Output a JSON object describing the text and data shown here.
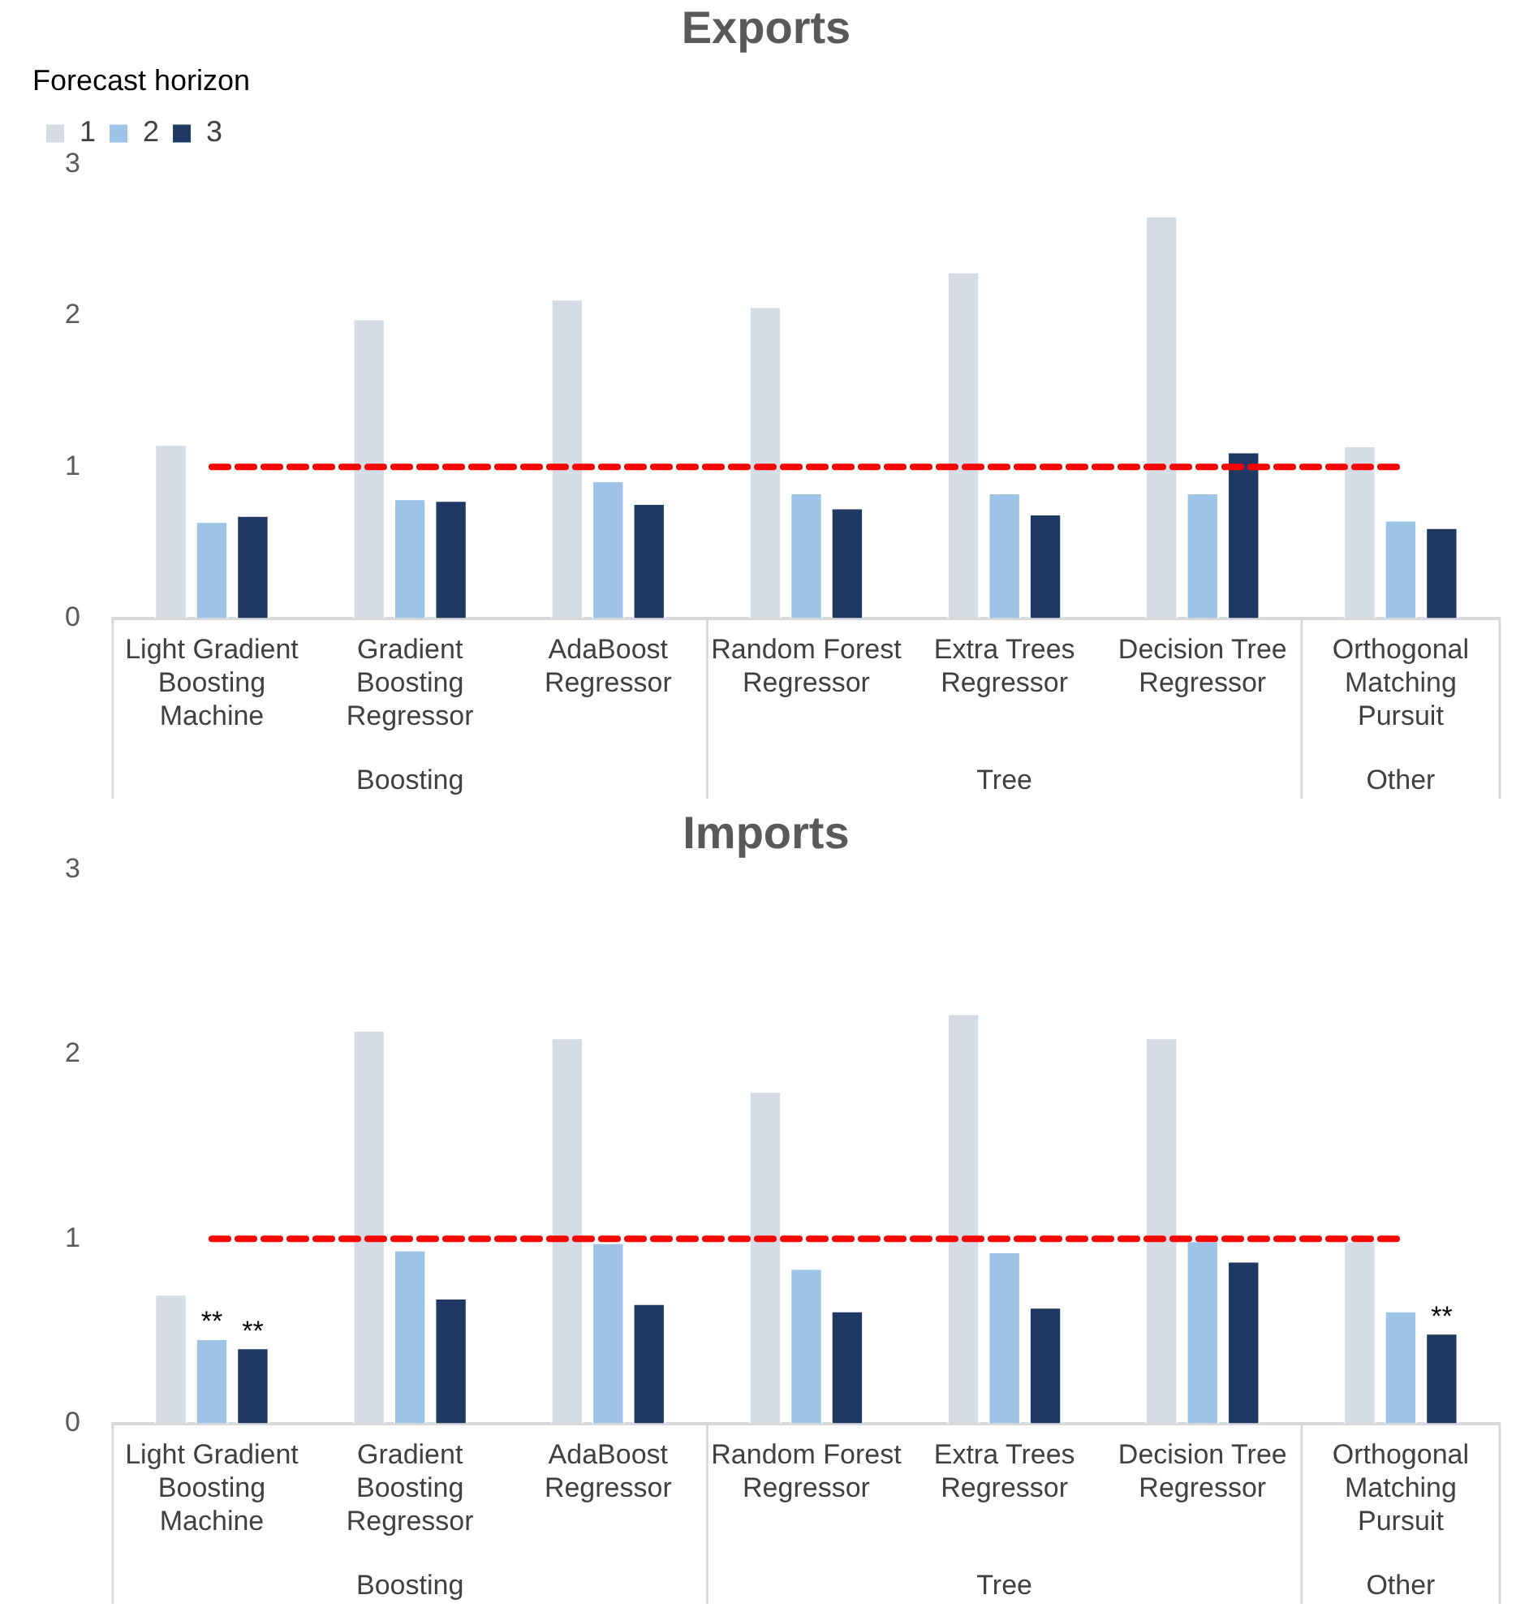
{
  "chart_data": [
    {
      "type": "bar",
      "title": "Exports",
      "legend_title": "Forecast horizon",
      "legend": "top left",
      "grid": false,
      "ylim": [
        0,
        3
      ],
      "yticks": [
        0,
        1,
        2,
        3
      ],
      "categories": [
        "Light Gradient Boosting Machine",
        "Gradient Boosting Regressor",
        "AdaBoost Regressor",
        "Random Forest Regressor",
        "Extra Trees Regressor",
        "Decision Tree Regressor",
        "Orthogonal Matching Pursuit"
      ],
      "series": [
        {
          "name": "1",
          "color": "#d6dce5",
          "values": [
            1.15,
            1.98,
            2.11,
            2.06,
            2.29,
            2.66,
            1.14
          ]
        },
        {
          "name": "2",
          "color": "#9dc3e6",
          "values": [
            0.64,
            0.79,
            0.91,
            0.83,
            0.83,
            0.83,
            0.65
          ]
        },
        {
          "name": "3",
          "color": "#1f3864",
          "values": [
            0.68,
            0.78,
            0.76,
            0.73,
            0.69,
            1.1,
            0.6
          ]
        }
      ],
      "ref_lines": [
        {
          "axis": "y",
          "value": 1,
          "color": "#ff0000",
          "line_style": "dashed"
        }
      ],
      "annotations": [
        "Boosting",
        "Tree",
        "Other"
      ]
    },
    {
      "type": "bar",
      "title": "Imports",
      "legend": false,
      "grid": false,
      "ylim": [
        0,
        3
      ],
      "yticks": [
        0,
        1,
        2,
        3
      ],
      "categories": [
        "Light Gradient Boosting Machine",
        "Gradient Boosting Regressor",
        "AdaBoost Regressor",
        "Random Forest Regressor",
        "Extra Trees Regressor",
        "Decision Tree Regressor",
        "Orthogonal Matching Pursuit"
      ],
      "series": [
        {
          "color": "#d6dce5",
          "values": [
            0.7,
            2.13,
            2.09,
            1.8,
            2.22,
            2.09,
            0.99
          ]
        },
        {
          "color": "#9dc3e6",
          "values": [
            0.46,
            0.94,
            0.98,
            0.84,
            0.93,
            0.99,
            0.61
          ],
          "value_labels": [
            "**",
            null,
            null,
            null,
            null,
            null,
            null
          ]
        },
        {
          "color": "#1f3864",
          "values": [
            0.41,
            0.68,
            0.65,
            0.61,
            0.63,
            0.88,
            0.49
          ],
          "value_labels": [
            "**",
            null,
            null,
            null,
            null,
            null,
            "**"
          ]
        }
      ],
      "ref_lines": [
        {
          "axis": "y",
          "value": 1,
          "color": "#ff0000",
          "line_style": "dashed"
        }
      ],
      "annotations": [
        "Boosting",
        "Tree",
        "Other"
      ]
    }
  ]
}
